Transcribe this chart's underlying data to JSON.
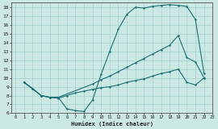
{
  "xlabel": "Humidex (Indice chaleur)",
  "bg_color": "#cce8e5",
  "line_color": "#1a7070",
  "grid_color": "#aad4d0",
  "xlim": [
    -0.5,
    23
  ],
  "ylim": [
    6,
    18.5
  ],
  "xticks": [
    0,
    1,
    2,
    3,
    4,
    5,
    6,
    7,
    8,
    9,
    10,
    11,
    12,
    13,
    14,
    15,
    16,
    17,
    18,
    19,
    20,
    21,
    22,
    23
  ],
  "yticks": [
    6,
    7,
    8,
    9,
    10,
    11,
    12,
    13,
    14,
    15,
    16,
    17,
    18
  ],
  "line1_x": [
    1,
    2,
    3,
    4,
    5,
    6,
    7,
    8,
    9,
    10,
    11,
    12,
    13,
    14,
    15,
    16,
    17,
    18,
    19,
    20,
    21,
    22
  ],
  "line1_y": [
    9.5,
    8.8,
    8.0,
    7.8,
    7.8,
    6.5,
    6.3,
    6.2,
    7.5,
    10.4,
    13.0,
    15.5,
    17.2,
    18.0,
    17.9,
    18.1,
    18.2,
    18.3,
    18.2,
    18.1,
    16.6,
    10.5
  ],
  "line2_x": [
    1,
    3,
    4,
    5,
    9,
    10,
    11,
    12,
    13,
    14,
    15,
    16,
    17,
    18,
    19,
    20,
    21,
    22
  ],
  "line2_y": [
    9.5,
    8.0,
    7.8,
    7.8,
    9.3,
    9.8,
    10.2,
    10.7,
    11.2,
    11.7,
    12.2,
    12.7,
    13.2,
    13.7,
    14.8,
    12.3,
    11.8,
    10.0
  ],
  "line3_x": [
    1,
    2,
    3,
    4,
    5,
    6,
    7,
    8,
    9,
    10,
    11,
    12,
    13,
    14,
    15,
    16,
    17,
    18,
    19,
    20,
    21,
    22
  ],
  "line3_y": [
    9.5,
    8.8,
    8.0,
    7.8,
    7.7,
    8.0,
    8.3,
    8.5,
    8.7,
    8.9,
    9.0,
    9.2,
    9.5,
    9.7,
    9.9,
    10.2,
    10.5,
    10.7,
    11.0,
    9.5,
    9.2,
    10.0
  ]
}
